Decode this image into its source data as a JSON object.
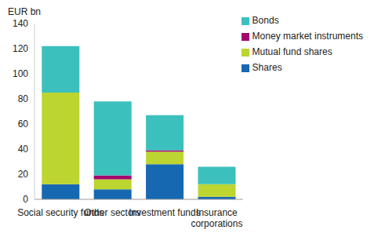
{
  "chart_data": {
    "type": "bar",
    "stacked": true,
    "y_label": "EUR bn",
    "categories": [
      "Social security funds",
      "Other sectors",
      "Investment funds",
      "Insurance corporations"
    ],
    "series": [
      {
        "name": "Shares",
        "color": "#1668b1",
        "values": [
          12,
          8,
          28,
          2
        ]
      },
      {
        "name": "Mutual fund shares",
        "color": "#bdd530",
        "values": [
          73,
          8,
          10,
          10
        ]
      },
      {
        "name": "Money market instruments",
        "color": "#a3086d",
        "values": [
          0,
          3,
          1,
          0
        ]
      },
      {
        "name": "Bonds",
        "color": "#3cc0be",
        "values": [
          37,
          59,
          28,
          14
        ]
      }
    ],
    "ylim": [
      0,
      140
    ],
    "yticks": [
      0,
      20,
      40,
      60,
      80,
      100,
      120,
      140
    ],
    "grid": false,
    "legend": "upper right"
  }
}
